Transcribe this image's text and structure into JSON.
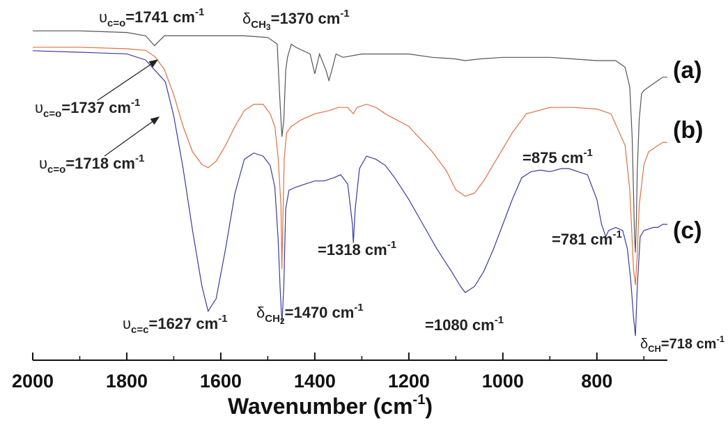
{
  "chart_data": {
    "type": "line",
    "xlabel": "Wavenumber (cm",
    "xlabel_sup": "-1",
    "xlabel_end": ")",
    "xlim": [
      2000,
      650
    ],
    "x_ticks": [
      2000,
      1800,
      1600,
      1400,
      1200,
      1000,
      800
    ],
    "x_tick_labels": [
      "2000",
      "1800",
      "1600",
      "1400",
      "1200",
      "1000",
      "800"
    ],
    "colors": {
      "a": "#555555",
      "b": "#e07040",
      "c": "#3a3aa0"
    },
    "series": [
      {
        "name": "(a)",
        "color": "#555555",
        "x": [
          2000,
          1900,
          1800,
          1760,
          1741,
          1720,
          1650,
          1550,
          1500,
          1480,
          1475,
          1470,
          1466,
          1462,
          1458,
          1450,
          1440,
          1410,
          1400,
          1390,
          1376,
          1370,
          1364,
          1355,
          1340,
          1300,
          1250,
          1200,
          1150,
          1100,
          1080,
          1050,
          1000,
          950,
          900,
          850,
          800,
          760,
          740,
          730,
          725,
          722,
          720,
          718,
          716,
          714,
          710,
          705,
          700,
          690,
          680,
          670,
          660,
          650
        ],
        "y": [
          0.97,
          0.97,
          0.965,
          0.955,
          0.925,
          0.955,
          0.955,
          0.955,
          0.95,
          0.93,
          0.78,
          0.65,
          0.7,
          0.85,
          0.89,
          0.93,
          0.92,
          0.9,
          0.84,
          0.9,
          0.85,
          0.82,
          0.85,
          0.9,
          0.89,
          0.9,
          0.9,
          0.9,
          0.89,
          0.885,
          0.88,
          0.885,
          0.89,
          0.89,
          0.89,
          0.885,
          0.88,
          0.88,
          0.86,
          0.8,
          0.65,
          0.48,
          0.35,
          0.3,
          0.4,
          0.55,
          0.7,
          0.78,
          0.79,
          0.8,
          0.81,
          0.82,
          0.83,
          0.83
        ]
      },
      {
        "name": "(b)",
        "color": "#e07040",
        "x": [
          2000,
          1900,
          1800,
          1760,
          1740,
          1720,
          1700,
          1680,
          1660,
          1640,
          1627,
          1610,
          1590,
          1570,
          1550,
          1530,
          1510,
          1495,
          1485,
          1478,
          1472,
          1470,
          1468,
          1465,
          1460,
          1450,
          1430,
          1400,
          1370,
          1350,
          1330,
          1318,
          1310,
          1290,
          1270,
          1250,
          1200,
          1150,
          1120,
          1100,
          1080,
          1060,
          1040,
          1020,
          1000,
          980,
          950,
          900,
          850,
          800,
          770,
          740,
          730,
          722,
          718,
          714,
          710,
          700,
          690,
          680,
          670,
          660,
          650
        ],
        "y": [
          0.95,
          0.95,
          0.945,
          0.94,
          0.92,
          0.88,
          0.8,
          0.7,
          0.62,
          0.58,
          0.57,
          0.59,
          0.64,
          0.7,
          0.75,
          0.77,
          0.77,
          0.74,
          0.7,
          0.6,
          0.45,
          0.25,
          0.4,
          0.6,
          0.68,
          0.7,
          0.72,
          0.74,
          0.75,
          0.76,
          0.76,
          0.74,
          0.76,
          0.77,
          0.76,
          0.74,
          0.7,
          0.62,
          0.56,
          0.5,
          0.48,
          0.49,
          0.53,
          0.58,
          0.63,
          0.68,
          0.74,
          0.76,
          0.76,
          0.755,
          0.74,
          0.64,
          0.5,
          0.25,
          0.2,
          0.3,
          0.45,
          0.58,
          0.62,
          0.63,
          0.64,
          0.65,
          0.65
        ]
      },
      {
        "name": "(c)",
        "color": "#3a3aa0",
        "x": [
          2000,
          1900,
          1800,
          1760,
          1718,
          1700,
          1680,
          1660,
          1640,
          1627,
          1610,
          1590,
          1570,
          1550,
          1530,
          1510,
          1495,
          1485,
          1478,
          1474,
          1470,
          1466,
          1462,
          1455,
          1440,
          1420,
          1400,
          1380,
          1360,
          1345,
          1330,
          1320,
          1318,
          1314,
          1305,
          1290,
          1270,
          1250,
          1230,
          1200,
          1170,
          1140,
          1110,
          1090,
          1080,
          1060,
          1040,
          1020,
          1000,
          980,
          960,
          940,
          920,
          900,
          875,
          860,
          840,
          820,
          800,
          790,
          781,
          775,
          760,
          745,
          735,
          728,
          722,
          718,
          714,
          708,
          700,
          690,
          680,
          670,
          660,
          650
        ],
        "y": [
          0.96,
          0.955,
          0.95,
          0.93,
          0.86,
          0.75,
          0.58,
          0.38,
          0.2,
          0.12,
          0.16,
          0.32,
          0.5,
          0.61,
          0.63,
          0.62,
          0.59,
          0.52,
          0.35,
          0.2,
          0.08,
          0.2,
          0.45,
          0.51,
          0.52,
          0.53,
          0.54,
          0.54,
          0.55,
          0.56,
          0.53,
          0.4,
          0.34,
          0.45,
          0.58,
          0.62,
          0.61,
          0.59,
          0.55,
          0.48,
          0.4,
          0.32,
          0.25,
          0.2,
          0.18,
          0.2,
          0.25,
          0.32,
          0.4,
          0.48,
          0.55,
          0.57,
          0.575,
          0.57,
          0.58,
          0.58,
          0.57,
          0.56,
          0.48,
          0.4,
          0.36,
          0.38,
          0.39,
          0.38,
          0.32,
          0.22,
          0.1,
          0.04,
          0.2,
          0.36,
          0.38,
          0.385,
          0.39,
          0.39,
          0.4,
          0.4
        ]
      }
    ],
    "annotations": [
      {
        "sym": "υ",
        "sub": "c=o",
        "val": "=1741 cm",
        "sup": "-1"
      },
      {
        "sym": "δ",
        "sub": "CH",
        "sub2": "3",
        "val": "=1370 cm",
        "sup": "-1"
      },
      {
        "sym": "υ",
        "sub": "c=o",
        "val": "=1737 cm",
        "sup": "-1"
      },
      {
        "sym": "υ",
        "sub": "c=o",
        "val": "=1718 cm",
        "sup": "-1"
      },
      {
        "val": "=875 cm",
        "sup": "-1"
      },
      {
        "val": "=1318 cm",
        "sup": "-1"
      },
      {
        "val": "=781 cm",
        "sup": "-1"
      },
      {
        "sym": "υ",
        "sub": "c=c",
        "val": "=1627 cm",
        "sup": "-1"
      },
      {
        "sym": "δ",
        "sub": "CH",
        "sub2": "2",
        "val": "=1470 cm",
        "sup": "-1"
      },
      {
        "val": "=1080 cm",
        "sup": "-1"
      },
      {
        "sym": "δ",
        "sub": "CH",
        "val": "=718 cm",
        "sup": "-1"
      }
    ],
    "series_labels": [
      "(a)",
      "(b)",
      "(c)"
    ]
  }
}
